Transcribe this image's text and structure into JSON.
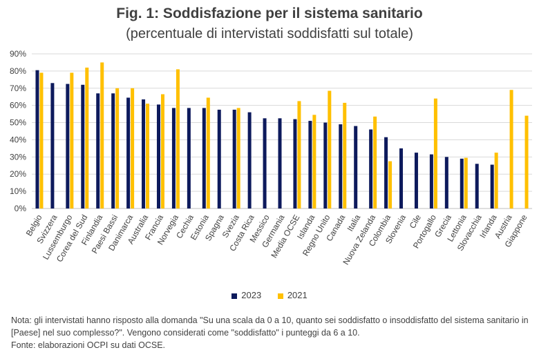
{
  "chart_data": {
    "type": "bar",
    "title": "Fig. 1: Soddisfazione per il sistema sanitario",
    "subtitle": "(percentuale di intervistati soddisfatti sul totale)",
    "xlabel": "",
    "ylabel": "",
    "ylim": [
      0,
      90
    ],
    "yticks": [
      "0%",
      "10%",
      "20%",
      "30%",
      "40%",
      "50%",
      "60%",
      "70%",
      "80%",
      "90%"
    ],
    "grid": true,
    "legend_position": "bottom",
    "categories": [
      "Belgio",
      "Svizzera",
      "Lussemburgo",
      "Corea del Sud",
      "Finlandia",
      "Paesi Bassi",
      "Danimarca",
      "Australia",
      "Francia",
      "Norvegia",
      "Cechia",
      "Estonia",
      "Spagna",
      "Svezia",
      "Costa Rica",
      "Messico",
      "Germania",
      "Media OCSE",
      "Islanda",
      "Regno Unito",
      "Canada",
      "Italia",
      "Nuova Zelanda",
      "Colombia",
      "Slovenia",
      "Cile",
      "Portogallo",
      "Grecia",
      "Lettonia",
      "Slovacchia",
      "Irlanda",
      "Austria",
      "Giappone"
    ],
    "series": [
      {
        "name": "2023",
        "color": "#0d1a5c",
        "values": [
          80.5,
          73,
          72.5,
          72,
          67,
          67,
          64.5,
          63.5,
          60.5,
          58.5,
          58.5,
          58.5,
          57.5,
          57.5,
          56,
          52.5,
          52.5,
          52,
          51,
          50,
          49,
          48,
          46,
          41.5,
          35,
          32.5,
          31.5,
          30,
          29,
          26,
          25.5,
          null,
          null
        ]
      },
      {
        "name": "2021",
        "color": "#ffc000",
        "values": [
          79,
          null,
          79,
          82,
          85,
          70,
          70,
          61,
          66.5,
          81,
          null,
          64.5,
          null,
          58.5,
          null,
          null,
          null,
          62.5,
          54.5,
          68.5,
          61.5,
          null,
          53.5,
          27.5,
          null,
          null,
          64,
          null,
          29.5,
          null,
          32.5,
          69,
          54
        ]
      }
    ]
  },
  "notes": {
    "line1": "Nota: gli intervistati hanno risposto alla domanda \"Su una scala da 0 a 10, quanto sei soddisfatto o insoddisfatto del sistema sanitario in [Paese] nel suo complesso?\". Vengono considerati come \"soddisfatto\" i punteggi da 6 a 10.",
    "line2": "Fonte: elaborazioni OCPI su dati OCSE."
  }
}
